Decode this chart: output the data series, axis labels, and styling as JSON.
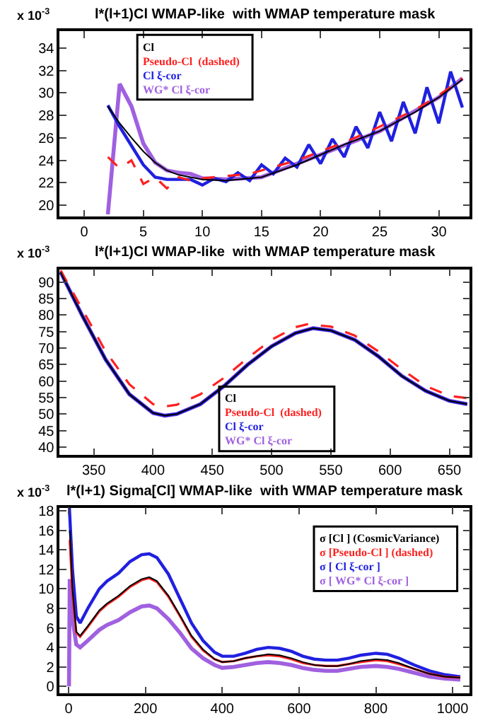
{
  "chart_data": [
    {
      "type": "line",
      "title": "l*(l+1)Cl WMAP-like  with WMAP temperature mask",
      "ylabel": "x 10$^{-3}$",
      "xlim": [
        -2.1,
        32.6
      ],
      "ylim": [
        19,
        35.5
      ],
      "xticks": [
        0,
        5,
        10,
        15,
        20,
        25,
        30
      ],
      "yticks": [
        20,
        22,
        24,
        26,
        28,
        30,
        32,
        34
      ],
      "legend": "top left",
      "grid": false,
      "series": [
        {
          "name": "Cl",
          "color": "#000000",
          "line_style": "solid",
          "x": [
            2,
            3,
            4,
            5,
            6,
            7,
            8,
            9,
            10,
            12,
            15,
            18,
            20,
            22,
            25,
            28,
            30,
            32
          ],
          "values": [
            28.8,
            27.3,
            26.0,
            24.8,
            23.8,
            23.1,
            22.7,
            22.5,
            22.3,
            22.2,
            22.5,
            23.6,
            24.5,
            25.4,
            26.6,
            28.3,
            29.6,
            31.2
          ]
        },
        {
          "name": "Pseudo-Cl  (dashed)",
          "color": "#ff2020",
          "line_style": "dashed",
          "x": [
            2,
            3,
            4,
            5,
            6,
            7,
            8,
            9,
            10,
            12,
            14,
            16,
            18,
            20,
            22,
            24,
            26,
            28,
            30,
            32
          ],
          "values": [
            24.3,
            23.3,
            24.0,
            21.9,
            22.5,
            21.5,
            22.5,
            22.2,
            22.4,
            22.6,
            22.8,
            23.4,
            24.0,
            24.8,
            25.6,
            26.5,
            27.5,
            28.5,
            29.8,
            31.3
          ]
        },
        {
          "name": "Cl ξ-cor",
          "color": "#2020e0",
          "line_style": "solid",
          "x": [
            2,
            3,
            4,
            5,
            6,
            7,
            8,
            9,
            10,
            11,
            12,
            13,
            14,
            15,
            16,
            17,
            18,
            19,
            20,
            21,
            22,
            23,
            24,
            25,
            26,
            27,
            28,
            29,
            30,
            31,
            32
          ],
          "values": [
            28.9,
            27.0,
            25.3,
            23.6,
            22.5,
            22.3,
            22.3,
            22.3,
            21.8,
            22.4,
            22.1,
            22.9,
            22.2,
            23.6,
            22.8,
            24.2,
            23.4,
            25.4,
            23.7,
            25.9,
            24.3,
            27.0,
            25.1,
            28.3,
            25.7,
            29.2,
            26.4,
            30.5,
            27.3,
            31.9,
            28.7
          ]
        },
        {
          "name": "WG* Cl ξ-cor",
          "color": "#a060e0",
          "line_style": "solid",
          "x": [
            2,
            3,
            4,
            5,
            6,
            7,
            8,
            9,
            10,
            12,
            15,
            20,
            25,
            30,
            32
          ],
          "values": [
            19.2,
            30.8,
            28.8,
            25.5,
            23.8,
            23.1,
            22.9,
            22.8,
            22.4,
            22.3,
            22.5,
            24.5,
            26.6,
            29.6,
            31.3
          ]
        }
      ]
    },
    {
      "type": "line",
      "title": "l*(l+1)Cl WMAP-like  with WMAP temperature mask",
      "ylabel": "x 10$^{-3}$",
      "xlim": [
        321,
        667
      ],
      "ylim": [
        37.6,
        93.8
      ],
      "xticks": [
        350,
        400,
        450,
        500,
        550,
        600,
        650
      ],
      "yticks": [
        40,
        45,
        50,
        55,
        60,
        65,
        70,
        75,
        80,
        85,
        90
      ],
      "legend": "bottom",
      "grid": false,
      "series": [
        {
          "name": "Cl",
          "color": "#000000",
          "line_style": "solid",
          "x": [
            322,
            340,
            360,
            380,
            400,
            410,
            420,
            440,
            460,
            480,
            500,
            520,
            535,
            550,
            570,
            590,
            610,
            630,
            650,
            665
          ],
          "values": [
            93,
            80,
            66.5,
            56,
            50.3,
            49.5,
            50,
            53,
            58.5,
            65,
            70.5,
            74.5,
            76,
            75.3,
            72.5,
            67.5,
            61.5,
            57,
            54,
            53
          ]
        },
        {
          "name": "Pseudo-Cl  (dashed)",
          "color": "#ff2020",
          "line_style": "dashed",
          "x": [
            322,
            340,
            360,
            380,
            400,
            410,
            420,
            440,
            460,
            480,
            500,
            520,
            530,
            550,
            570,
            590,
            610,
            630,
            650,
            665
          ],
          "values": [
            93.5,
            82,
            69,
            59,
            53,
            52.3,
            52.8,
            56,
            61,
            67,
            72.5,
            76.3,
            77.2,
            76.5,
            73.8,
            69,
            63.5,
            58.5,
            55.5,
            54.8
          ]
        },
        {
          "name": "Cl ξ-cor",
          "color": "#2020e0",
          "line_style": "solid",
          "x": [
            322,
            340,
            360,
            380,
            400,
            410,
            420,
            440,
            460,
            480,
            500,
            520,
            535,
            550,
            570,
            590,
            610,
            630,
            650,
            665
          ],
          "values": [
            93,
            80,
            66.5,
            56,
            50.3,
            49.5,
            50,
            53,
            58.5,
            65,
            70.5,
            74.5,
            76,
            75.3,
            72.5,
            67.5,
            61.5,
            57,
            54,
            53
          ]
        },
        {
          "name": "WG* Cl ξ-cor",
          "color": "#a060e0",
          "line_style": "solid",
          "x": [
            322,
            340,
            360,
            380,
            400,
            410,
            420,
            440,
            460,
            480,
            500,
            520,
            535,
            550,
            570,
            590,
            610,
            630,
            650,
            665
          ],
          "values": [
            93,
            80,
            66.5,
            56,
            50.3,
            49.5,
            50,
            53,
            58.5,
            65,
            70.5,
            74.5,
            76,
            75.3,
            72.5,
            67.5,
            61.5,
            57,
            54,
            53
          ]
        }
      ]
    },
    {
      "type": "line",
      "title": "l*(l+1) Sigma[Cl] WMAP-like  with WMAP temperature mask",
      "ylabel": "x 10$^{-3}$",
      "xlim": [
        -24,
        1044
      ],
      "ylim": [
        -0.7,
        18.3
      ],
      "xticks": [
        0,
        200,
        400,
        600,
        800,
        1000
      ],
      "yticks": [
        0,
        2,
        4,
        6,
        8,
        10,
        12,
        14,
        16,
        18
      ],
      "legend": "top right",
      "grid": false,
      "series": [
        {
          "name": "σ [Cl ] (CosmicVariance)",
          "color": "#000000",
          "line_style": "solid",
          "x": [
            3,
            10,
            20,
            30,
            50,
            80,
            100,
            130,
            160,
            190,
            210,
            230,
            260,
            290,
            320,
            350,
            380,
            400,
            430,
            460,
            490,
            520,
            550,
            580,
            610,
            640,
            670,
            700,
            730,
            760,
            800,
            830,
            860,
            900,
            940,
            980,
            1020
          ],
          "values": [
            16,
            10,
            5.6,
            5.2,
            6.2,
            7.8,
            8.5,
            9.3,
            10.3,
            11,
            11.2,
            10.8,
            9.3,
            7.3,
            5.2,
            3.8,
            2.8,
            2.5,
            2.6,
            2.9,
            3.1,
            3.3,
            3.2,
            2.9,
            2.5,
            2.2,
            2.1,
            2.1,
            2.3,
            2.6,
            2.8,
            2.7,
            2.4,
            1.8,
            1.3,
            1.0,
            0.9
          ]
        },
        {
          "name": "σ [Pseudo-Cl ] (dashed)",
          "color": "#ff2020",
          "line_style": "solid",
          "x": [
            3,
            10,
            20,
            30,
            50,
            80,
            100,
            130,
            160,
            190,
            210,
            230,
            260,
            290,
            320,
            350,
            380,
            400,
            430,
            460,
            490,
            520,
            550,
            580,
            610,
            640,
            670,
            700,
            730,
            760,
            800,
            830,
            860,
            900,
            940,
            980,
            1020
          ],
          "values": [
            15,
            9.5,
            5.5,
            5.1,
            6.1,
            7.7,
            8.4,
            9.2,
            10.2,
            10.9,
            11.1,
            10.7,
            9.2,
            7.2,
            5.1,
            3.7,
            2.8,
            2.5,
            2.6,
            2.9,
            3.1,
            3.2,
            3.1,
            2.8,
            2.4,
            2.2,
            2.1,
            2.1,
            2.3,
            2.5,
            2.7,
            2.6,
            2.3,
            1.8,
            1.3,
            1.0,
            0.9
          ]
        },
        {
          "name": "σ [ Cl ξ-cor ]",
          "color": "#2020e0",
          "line_style": "solid",
          "x": [
            2,
            10,
            20,
            30,
            50,
            80,
            100,
            130,
            160,
            190,
            210,
            230,
            260,
            290,
            320,
            350,
            380,
            400,
            430,
            460,
            490,
            520,
            550,
            580,
            610,
            640,
            670,
            700,
            730,
            760,
            800,
            830,
            860,
            900,
            940,
            980,
            1020
          ],
          "values": [
            18.3,
            12,
            7.2,
            6.5,
            8,
            10,
            10.8,
            11.6,
            12.8,
            13.5,
            13.6,
            13.2,
            11.5,
            9,
            6.5,
            4.7,
            3.5,
            3.1,
            3.1,
            3.4,
            3.8,
            4,
            3.9,
            3.6,
            3.1,
            2.8,
            2.7,
            2.7,
            2.9,
            3.2,
            3.4,
            3.3,
            2.9,
            2.2,
            1.6,
            1.2,
            1.0
          ]
        },
        {
          "name": "σ [ WG* Cl ξ-cor ]",
          "color": "#a060e0",
          "line_style": "solid",
          "x": [
            1,
            3,
            10,
            20,
            30,
            50,
            80,
            100,
            130,
            160,
            190,
            210,
            230,
            260,
            290,
            320,
            350,
            380,
            400,
            430,
            460,
            490,
            520,
            550,
            580,
            610,
            640,
            670,
            700,
            730,
            760,
            800,
            830,
            860,
            900,
            940,
            980,
            1020
          ],
          "values": [
            0,
            11,
            7,
            4.3,
            4.0,
            4.7,
            5.8,
            6.3,
            6.8,
            7.6,
            8.2,
            8.3,
            8,
            6.9,
            5.5,
            3.9,
            2.9,
            2.2,
            1.9,
            2,
            2.2,
            2.4,
            2.5,
            2.4,
            2.2,
            1.9,
            1.7,
            1.6,
            1.6,
            1.8,
            2,
            2.1,
            2.0,
            1.8,
            1.4,
            1.0,
            0.8,
            0.7
          ]
        }
      ]
    }
  ]
}
